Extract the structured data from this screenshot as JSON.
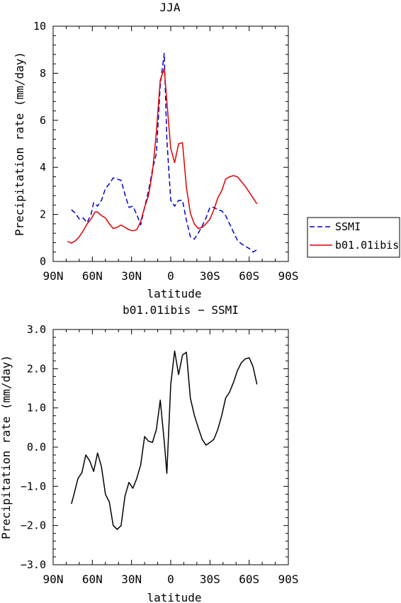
{
  "chart_data": [
    {
      "type": "line",
      "title": "JJA",
      "xlabel": "latitude",
      "ylabel": "Precipitation rate (mm/day)",
      "xlim": [
        -90,
        90
      ],
      "ylim": [
        0,
        10
      ],
      "x_ticks": [
        -90,
        -60,
        -30,
        0,
        30,
        60,
        90
      ],
      "x_tick_labels": [
        "90N",
        "60N",
        "30N",
        "0",
        "30S",
        "60S",
        "90S"
      ],
      "y_ticks": [
        0,
        2,
        4,
        6,
        8,
        10
      ],
      "y_tick_labels": [
        "0",
        "2",
        "4",
        "6",
        "8",
        "10"
      ],
      "legend_position": "right",
      "series": [
        {
          "name": "SSMI",
          "color": "#0000cc",
          "style": "dashed",
          "x": [
            -76,
            -73,
            -70,
            -67,
            -64,
            -61,
            -59,
            -56,
            -53,
            -50,
            -47,
            -44,
            -41,
            -38,
            -35,
            -32,
            -29,
            -26,
            -23,
            -20,
            -17,
            -14,
            -11,
            -8,
            -5,
            -3,
            0,
            3,
            6,
            9,
            12,
            15,
            18,
            21,
            24,
            27,
            30,
            33,
            36,
            39,
            42,
            45,
            48,
            51,
            54,
            57,
            60,
            63,
            66
          ],
          "y": [
            2.2,
            2.05,
            1.8,
            1.85,
            1.65,
            2.0,
            2.5,
            2.35,
            2.6,
            3.1,
            3.3,
            3.55,
            3.5,
            3.45,
            2.85,
            2.3,
            2.35,
            2.0,
            1.55,
            2.3,
            3.0,
            3.9,
            4.6,
            7.5,
            8.85,
            5.2,
            2.6,
            2.35,
            2.6,
            2.6,
            1.75,
            1.05,
            0.95,
            1.2,
            1.5,
            1.85,
            2.3,
            2.3,
            2.2,
            2.15,
            1.95,
            1.6,
            1.25,
            0.9,
            0.75,
            0.65,
            0.55,
            0.4,
            0.5
          ]
        },
        {
          "name": "b01.01ibis",
          "color": "#e00000",
          "style": "solid",
          "x": [
            -79,
            -76,
            -73,
            -70,
            -67,
            -64,
            -61,
            -58,
            -56,
            -53,
            -50,
            -47,
            -44,
            -41,
            -38,
            -35,
            -32,
            -29,
            -26,
            -23,
            -20,
            -17,
            -14,
            -11,
            -8,
            -5,
            -3,
            0,
            3,
            6,
            9,
            12,
            15,
            18,
            21,
            24,
            27,
            30,
            33,
            36,
            39,
            42,
            45,
            48,
            51,
            54,
            57,
            60,
            63,
            66
          ],
          "y": [
            0.85,
            0.78,
            0.88,
            1.05,
            1.3,
            1.6,
            1.8,
            2.1,
            2.1,
            1.95,
            1.85,
            1.6,
            1.4,
            1.45,
            1.55,
            1.45,
            1.35,
            1.3,
            1.35,
            1.7,
            2.3,
            2.8,
            3.8,
            5.5,
            7.7,
            8.2,
            6.8,
            4.8,
            4.2,
            5.0,
            5.05,
            3.15,
            2.05,
            1.6,
            1.4,
            1.45,
            1.6,
            1.8,
            2.2,
            2.7,
            3.0,
            3.5,
            3.6,
            3.65,
            3.6,
            3.4,
            3.2,
            2.95,
            2.7,
            2.45
          ]
        }
      ]
    },
    {
      "type": "line",
      "title": "b01.01ibis − SSMI",
      "xlabel": "latitude",
      "ylabel": "Precipitation rate (mm/day)",
      "xlim": [
        -90,
        90
      ],
      "ylim": [
        -3,
        3
      ],
      "x_ticks": [
        -90,
        -60,
        -30,
        0,
        30,
        60,
        90
      ],
      "x_tick_labels": [
        "90N",
        "60N",
        "30N",
        "0",
        "30S",
        "60S",
        "90S"
      ],
      "y_ticks": [
        -3,
        -2,
        -1,
        0,
        1,
        2,
        3
      ],
      "y_tick_labels": [
        "−3.0",
        "−2.0",
        "−1.0",
        "0.0",
        "1.0",
        "2.0",
        "3.0"
      ],
      "series": [
        {
          "color": "#000000",
          "style": "solid",
          "x": [
            -76,
            -74,
            -71,
            -68,
            -65,
            -62,
            -59,
            -56,
            -53,
            -50,
            -47,
            -44,
            -41,
            -38,
            -35,
            -32,
            -29,
            -26,
            -23,
            -20,
            -17,
            -14,
            -11,
            -8,
            -5,
            -3,
            0,
            3,
            6,
            9,
            12,
            15,
            18,
            21,
            24,
            27,
            30,
            33,
            36,
            39,
            42,
            45,
            48,
            51,
            54,
            57,
            60,
            63,
            66
          ],
          "y": [
            -1.45,
            -1.2,
            -0.8,
            -0.65,
            -0.2,
            -0.35,
            -0.62,
            -0.15,
            -0.5,
            -1.2,
            -1.4,
            -2.0,
            -2.1,
            -2.0,
            -1.25,
            -0.9,
            -1.05,
            -0.8,
            -0.45,
            0.27,
            0.15,
            0.12,
            0.45,
            1.2,
            0.15,
            -0.67,
            1.6,
            2.45,
            1.85,
            2.35,
            2.42,
            1.25,
            0.82,
            0.5,
            0.2,
            0.05,
            0.12,
            0.2,
            0.45,
            0.8,
            1.25,
            1.4,
            1.65,
            1.95,
            2.15,
            2.25,
            2.28,
            2.05,
            1.6
          ]
        }
      ]
    }
  ]
}
